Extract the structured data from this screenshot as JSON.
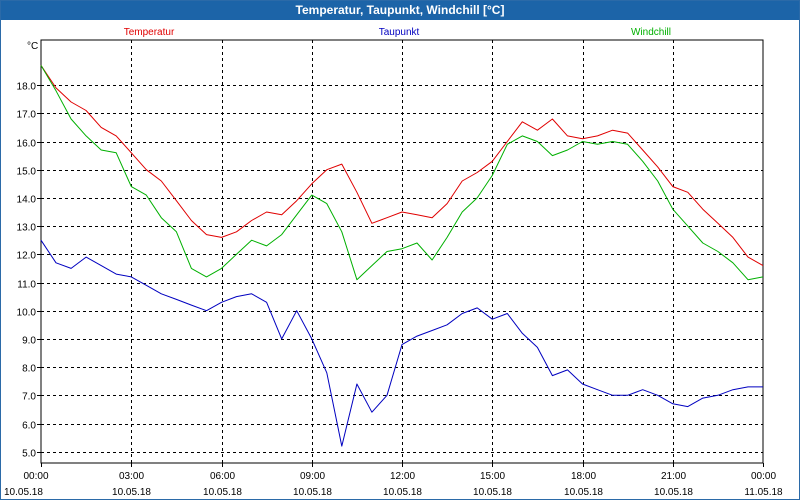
{
  "window": {
    "title": "Temperatur, Taupunkt, Windchill [°C]"
  },
  "chart_data": {
    "type": "line",
    "title": "Temperatur, Taupunkt, Windchill [°C]",
    "ylabel": "°C",
    "ylim": [
      4.6,
      19.6
    ],
    "xlim": [
      0,
      24
    ],
    "yticks": [
      "5.0",
      "6.0",
      "7.0",
      "8.0",
      "9.0",
      "10.0",
      "11.0",
      "12.0",
      "13.0",
      "14.0",
      "15.0",
      "16.0",
      "17.0",
      "18.0"
    ],
    "xticks": [
      {
        "x": 0,
        "time": "00:00",
        "date": "10.05.18"
      },
      {
        "x": 3,
        "time": "03:00",
        "date": "10.05.18"
      },
      {
        "x": 6,
        "time": "06:00",
        "date": "10.05.18"
      },
      {
        "x": 9,
        "time": "09:00",
        "date": "10.05.18"
      },
      {
        "x": 12,
        "time": "12:00",
        "date": "10.05.18"
      },
      {
        "x": 15,
        "time": "15:00",
        "date": "10.05.18"
      },
      {
        "x": 18,
        "time": "18:00",
        "date": "10.05.18"
      },
      {
        "x": 21,
        "time": "21:00",
        "date": "10.05.18"
      },
      {
        "x": 24,
        "time": "00:00",
        "date": "11.05.18"
      }
    ],
    "grid": true,
    "legend_position": "top",
    "series": [
      {
        "name": "Temperatur",
        "color": "#e00000",
        "x": [
          0,
          0.5,
          1,
          1.5,
          2,
          2.5,
          3,
          3.5,
          4,
          4.5,
          5,
          5.5,
          6,
          6.5,
          7,
          7.5,
          8,
          8.5,
          9,
          9.5,
          10,
          10.5,
          11,
          11.5,
          12,
          12.5,
          13,
          13.5,
          14,
          14.5,
          15,
          15.5,
          16,
          16.5,
          17,
          17.5,
          18,
          18.5,
          19,
          19.5,
          20,
          20.5,
          21,
          21.5,
          22,
          22.5,
          23,
          23.5,
          24
        ],
        "y": [
          18.7,
          17.9,
          17.4,
          17.1,
          16.5,
          16.2,
          15.6,
          15.0,
          14.6,
          13.9,
          13.2,
          12.7,
          12.6,
          12.8,
          13.2,
          13.5,
          13.4,
          13.9,
          14.5,
          15.0,
          15.2,
          14.2,
          13.1,
          13.3,
          13.5,
          13.4,
          13.3,
          13.8,
          14.6,
          14.9,
          15.3,
          16.0,
          16.7,
          16.4,
          16.8,
          16.2,
          16.1,
          16.2,
          16.4,
          16.3,
          15.7,
          15.1,
          14.4,
          14.2,
          13.6,
          13.1,
          12.6,
          11.9,
          11.6
        ]
      },
      {
        "name": "Taupunkt",
        "color": "#0000c0",
        "x": [
          0,
          0.5,
          1,
          1.5,
          2,
          2.5,
          3,
          3.5,
          4,
          4.5,
          5,
          5.5,
          6,
          6.5,
          7,
          7.5,
          8,
          8.5,
          9,
          9.5,
          10,
          10.5,
          11,
          11.5,
          12,
          12.5,
          13,
          13.5,
          14,
          14.5,
          15,
          15.5,
          16,
          16.5,
          17,
          17.5,
          18,
          18.5,
          19,
          19.5,
          20,
          20.5,
          21,
          21.5,
          22,
          22.5,
          23,
          23.5,
          24
        ],
        "y": [
          12.5,
          11.7,
          11.5,
          11.9,
          11.6,
          11.3,
          11.2,
          10.9,
          10.6,
          10.4,
          10.2,
          10.0,
          10.3,
          10.5,
          10.6,
          10.3,
          9.0,
          10.0,
          9.0,
          7.8,
          5.2,
          7.4,
          6.4,
          7.0,
          8.8,
          9.1,
          9.3,
          9.5,
          9.9,
          10.1,
          9.7,
          9.9,
          9.2,
          8.7,
          7.7,
          7.9,
          7.4,
          7.2,
          7.0,
          7.0,
          7.2,
          7.0,
          6.7,
          6.6,
          6.9,
          7.0,
          7.2,
          7.3,
          7.3
        ]
      },
      {
        "name": "Windchill",
        "color": "#00b000",
        "x": [
          0,
          0.5,
          1,
          1.5,
          2,
          2.5,
          3,
          3.5,
          4,
          4.5,
          5,
          5.5,
          6,
          6.5,
          7,
          7.5,
          8,
          8.5,
          9,
          9.5,
          10,
          10.5,
          11,
          11.5,
          12,
          12.5,
          13,
          13.5,
          14,
          14.5,
          15,
          15.5,
          16,
          16.5,
          17,
          17.5,
          18,
          18.5,
          19,
          19.5,
          20,
          20.5,
          21,
          21.5,
          22,
          22.5,
          23,
          23.5,
          24
        ],
        "y": [
          18.7,
          17.8,
          16.8,
          16.2,
          15.7,
          15.6,
          14.4,
          14.1,
          13.3,
          12.8,
          11.5,
          11.2,
          11.5,
          12.0,
          12.5,
          12.3,
          12.7,
          13.4,
          14.1,
          13.8,
          12.8,
          11.1,
          11.6,
          12.1,
          12.2,
          12.4,
          11.8,
          12.6,
          13.5,
          14.0,
          14.8,
          15.9,
          16.2,
          16.0,
          15.5,
          15.7,
          16.0,
          15.9,
          16.0,
          15.9,
          15.3,
          14.6,
          13.6,
          13.0,
          12.4,
          12.1,
          11.7,
          11.1,
          11.2
        ]
      }
    ]
  }
}
